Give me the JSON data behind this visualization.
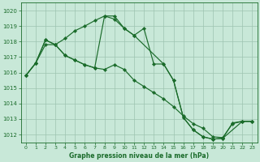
{
  "title": "Graphe pression niveau de la mer (hPa)",
  "background_color": "#c8e8d8",
  "grid_color": "#9dc4b0",
  "line_color": "#1a6b2a",
  "xlim": [
    -0.5,
    23.5
  ],
  "ylim": [
    1011.5,
    1020.5
  ],
  "yticks": [
    1012,
    1013,
    1014,
    1015,
    1016,
    1017,
    1018,
    1019,
    1020
  ],
  "xticks": [
    0,
    1,
    2,
    3,
    4,
    5,
    6,
    7,
    8,
    9,
    10,
    11,
    12,
    13,
    14,
    15,
    16,
    17,
    18,
    19,
    20,
    21,
    22,
    23
  ],
  "line1_x": [
    0,
    1,
    2,
    3,
    4,
    5,
    6,
    7,
    8,
    9,
    10,
    11,
    12,
    13,
    14,
    15,
    16,
    17,
    18,
    19,
    20,
    21,
    22,
    23
  ],
  "line1_y": [
    1015.8,
    1016.6,
    1017.8,
    1017.8,
    1017.1,
    1016.8,
    1016.5,
    1016.3,
    1016.2,
    1016.5,
    1016.2,
    1015.5,
    1015.1,
    1014.7,
    1014.3,
    1013.8,
    1013.2,
    1012.7,
    1012.4,
    1011.85,
    1011.8,
    1012.7,
    1012.85,
    1012.85
  ],
  "line2_x": [
    0,
    1,
    2,
    3,
    4,
    5,
    6,
    7,
    8,
    9,
    10,
    11,
    12,
    13,
    14,
    15,
    16,
    17,
    18,
    19,
    20,
    21,
    22,
    23
  ],
  "line2_y": [
    1015.8,
    1016.6,
    1018.1,
    1017.8,
    1018.2,
    1018.7,
    1019.0,
    1019.35,
    1019.65,
    1019.65,
    1018.85,
    1018.4,
    1018.85,
    1016.55,
    1016.55,
    1015.5,
    1013.1,
    1012.3,
    1011.85,
    1011.7,
    1011.75,
    1012.75,
    1012.85,
    1012.85
  ],
  "line3_x": [
    0,
    1,
    2,
    3,
    4,
    5,
    6,
    7,
    8,
    9,
    10,
    11,
    14,
    15,
    16,
    17,
    18,
    19,
    20,
    22,
    23
  ],
  "line3_y": [
    1015.8,
    1016.6,
    1018.1,
    1017.8,
    1017.1,
    1016.8,
    1016.5,
    1016.3,
    1019.65,
    1019.45,
    1018.85,
    1018.4,
    1016.55,
    1015.5,
    1013.1,
    1012.3,
    1011.85,
    1011.7,
    1011.75,
    1012.85,
    1012.85
  ]
}
